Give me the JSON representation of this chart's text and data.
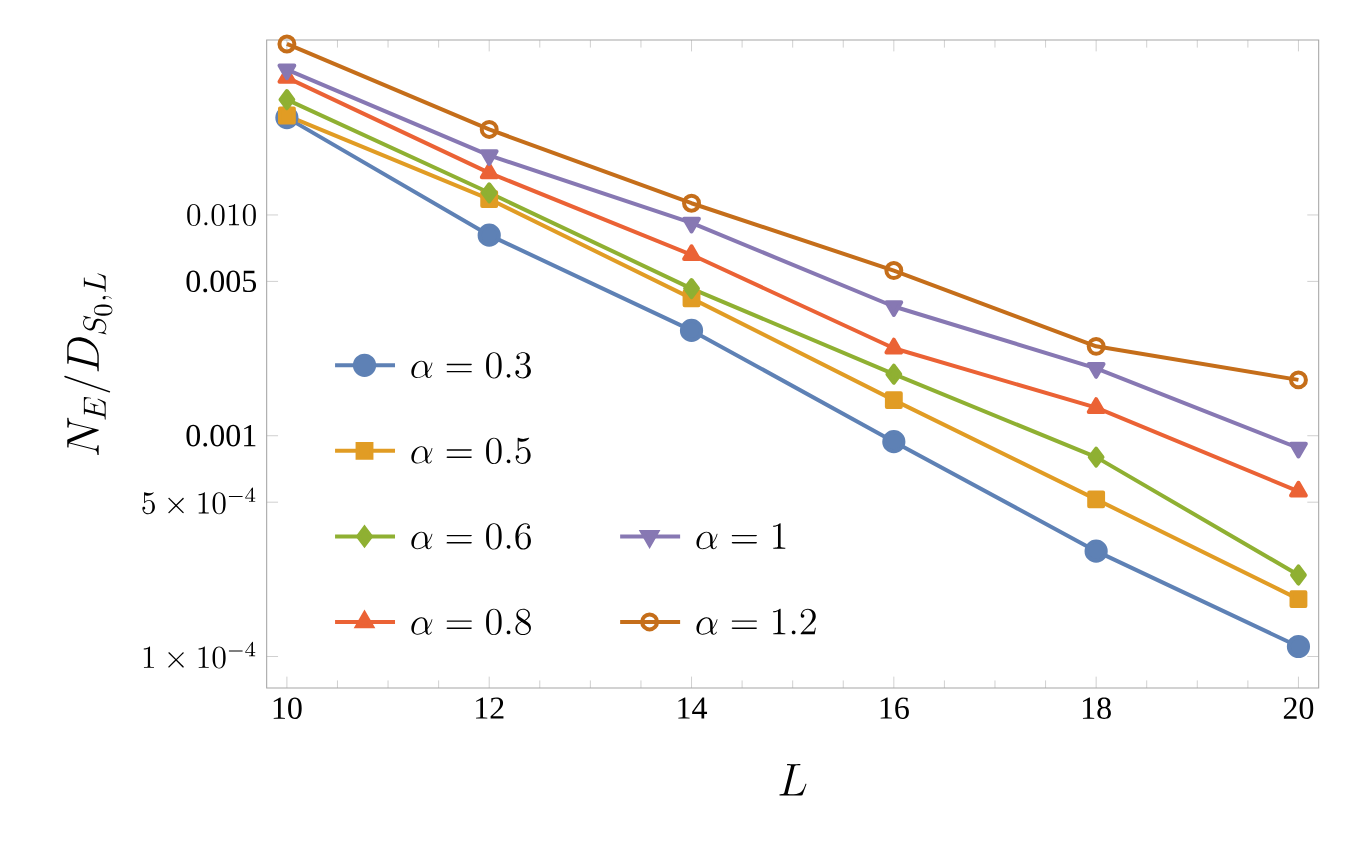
{
  "chart_data": {
    "type": "line",
    "xlabel": "L",
    "ylabel": "N_E/D_{S_0,L}",
    "log": "y",
    "x": [
      10,
      12,
      14,
      16,
      18,
      20
    ],
    "xlim": [
      9.8,
      20.2
    ],
    "xticks": [
      10,
      12,
      14,
      16,
      18,
      20
    ],
    "ylim": [
      7.2e-05,
      0.062
    ],
    "yticks": [
      {
        "value": 0.0001,
        "label": "1\\times 10^{-4}"
      },
      {
        "value": 0.0005,
        "label": "5\\times 10^{-4}"
      },
      0.001,
      0.005,
      {
        "value": 0.01,
        "label": "0.010"
      }
    ],
    "grid": false,
    "legend": "bottom left",
    "line_style": "solid",
    "series": [
      {
        "name": "\\alpha = 0.3",
        "color": "#5e81b5",
        "marker": "circle",
        "values": [
          0.0276,
          0.0081,
          0.003,
          0.00094,
          0.0003,
          0.000111
        ]
      },
      {
        "name": "\\alpha = 0.5",
        "color": "#e19c24",
        "marker": "square",
        "values": [
          0.0282,
          0.0118,
          0.00419,
          0.00145,
          0.000515,
          0.000182
        ]
      },
      {
        "name": "\\alpha = 0.6",
        "color": "#8fb032",
        "marker": "diamond",
        "values": [
          0.0333,
          0.0126,
          0.00464,
          0.0019,
          0.0008,
          0.000234
        ]
      },
      {
        "name": "\\alpha = 0.8",
        "color": "#eb6235",
        "marker": "triangle",
        "values": [
          0.0419,
          0.0155,
          0.0066,
          0.00249,
          0.00134,
          0.00056
        ]
      },
      {
        "name": "\\alpha = 1",
        "color": "#8778b3",
        "marker": "triangle-down",
        "values": [
          0.0455,
          0.0186,
          0.0092,
          0.00385,
          0.00202,
          0.00088
        ]
      },
      {
        "name": "\\alpha = 1.2",
        "color": "#c56e1a",
        "marker": "circle-open",
        "values": [
          0.0595,
          0.0244,
          0.0113,
          0.0056,
          0.00254,
          0.00179
        ]
      }
    ]
  }
}
